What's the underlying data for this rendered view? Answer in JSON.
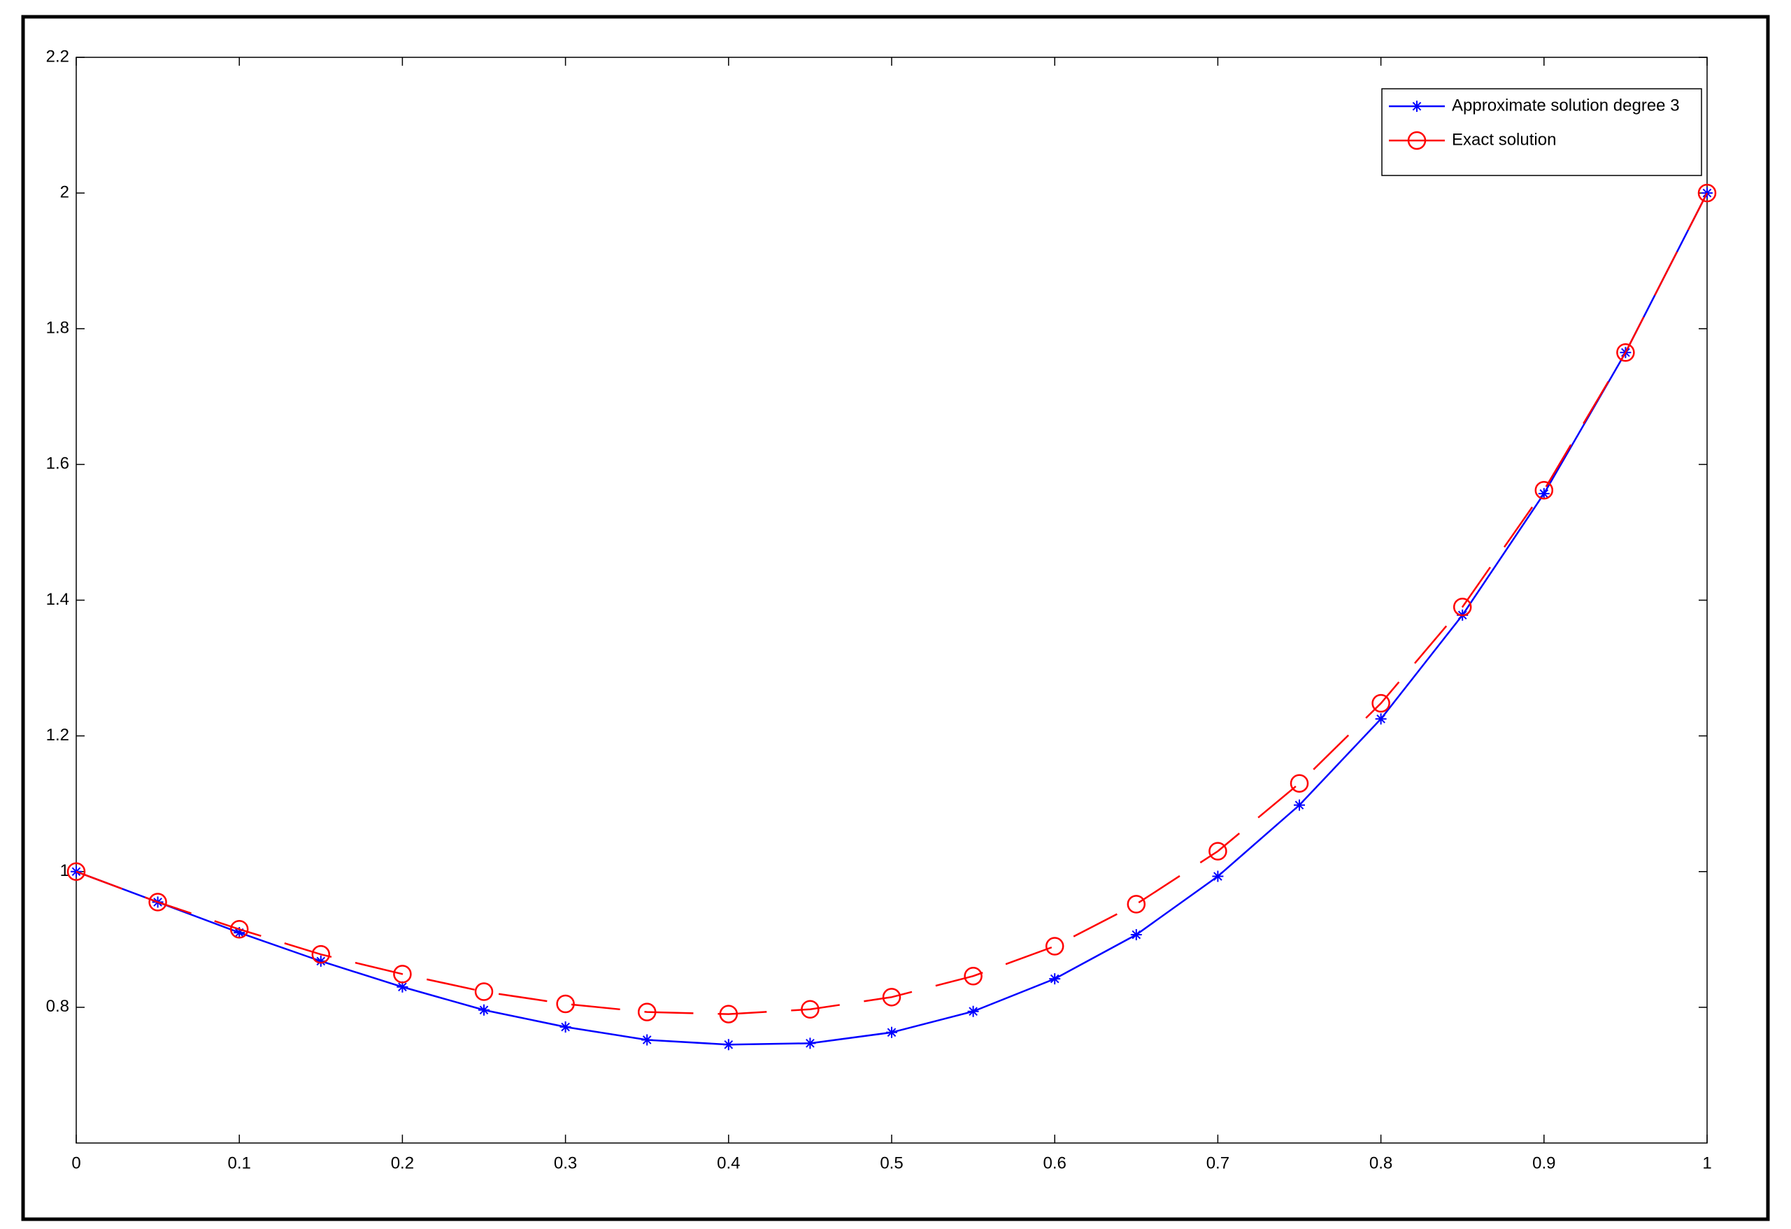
{
  "chart_data": {
    "type": "line",
    "x": [
      0,
      0.05,
      0.1,
      0.15,
      0.2,
      0.25,
      0.3,
      0.35,
      0.4,
      0.45,
      0.5,
      0.55,
      0.6,
      0.65,
      0.7,
      0.75,
      0.8,
      0.85,
      0.9,
      0.95,
      1
    ],
    "series": [
      {
        "name": "Approximate solution degree 3",
        "color": "#0000ff",
        "marker": "asterisk",
        "line_style": "solid",
        "values": [
          1.0,
          0.955,
          0.91,
          0.868,
          0.83,
          0.796,
          0.771,
          0.752,
          0.745,
          0.747,
          0.763,
          0.794,
          0.842,
          0.907,
          0.993,
          1.098,
          1.225,
          1.378,
          1.557,
          1.765,
          2.0
        ]
      },
      {
        "name": "Exact solution",
        "color": "#ff0000",
        "marker": "circle",
        "line_style": "dashed",
        "values": [
          1.0,
          0.955,
          0.915,
          0.878,
          0.849,
          0.823,
          0.805,
          0.793,
          0.79,
          0.797,
          0.815,
          0.846,
          0.89,
          0.952,
          1.03,
          1.13,
          1.248,
          1.39,
          1.562,
          1.765,
          2.0
        ]
      }
    ],
    "xlim": [
      0,
      1
    ],
    "xticks": [
      0,
      0.1,
      0.2,
      0.3,
      0.4,
      0.5,
      0.6,
      0.7,
      0.8,
      0.9,
      1
    ],
    "ylim": [
      0.6,
      2.2
    ],
    "yticks": [
      0.8,
      1,
      1.2,
      1.4,
      1.6,
      1.8,
      2,
      2.2
    ],
    "grid": false,
    "legend": "northeast"
  }
}
